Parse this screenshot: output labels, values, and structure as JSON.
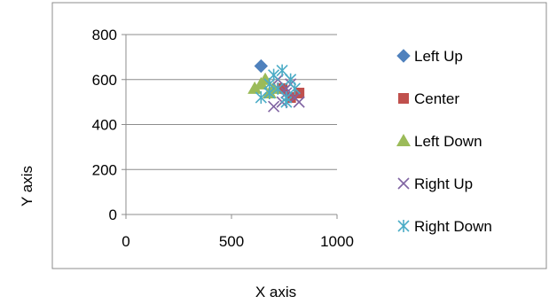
{
  "chart_data": {
    "type": "scatter",
    "xlabel": "X axis",
    "ylabel": "Y axis",
    "xlim": [
      0,
      1000
    ],
    "ylim": [
      0,
      800
    ],
    "xticks": [
      0,
      500,
      1000
    ],
    "yticks": [
      0,
      200,
      400,
      600,
      800
    ],
    "grid": "horizontal",
    "legend": "right",
    "series": [
      {
        "name": "Left Up",
        "marker": "diamond",
        "color": "#4F81BD",
        "x": [
          640
        ],
        "y": [
          660
        ]
      },
      {
        "name": "Center",
        "marker": "square",
        "color": "#C0504D",
        "x": [
          820,
          780,
          740
        ],
        "y": [
          540,
          520,
          560
        ]
      },
      {
        "name": "Left Down",
        "marker": "triangle",
        "color": "#9BBB59",
        "x": [
          610,
          640,
          660,
          700,
          680
        ],
        "y": [
          560,
          580,
          600,
          560,
          540
        ]
      },
      {
        "name": "Right Up",
        "marker": "x",
        "color": "#8064A2",
        "x": [
          720,
          760,
          800,
          740,
          820,
          700,
          780,
          760
        ],
        "y": [
          600,
          560,
          520,
          500,
          500,
          480,
          580,
          540
        ]
      },
      {
        "name": "Right Down",
        "marker": "asterisk",
        "color": "#4BACC6",
        "x": [
          640,
          680,
          720,
          760,
          780,
          800,
          740,
          700,
          760,
          680
        ],
        "y": [
          520,
          540,
          560,
          520,
          600,
          560,
          640,
          620,
          500,
          580
        ]
      }
    ]
  }
}
